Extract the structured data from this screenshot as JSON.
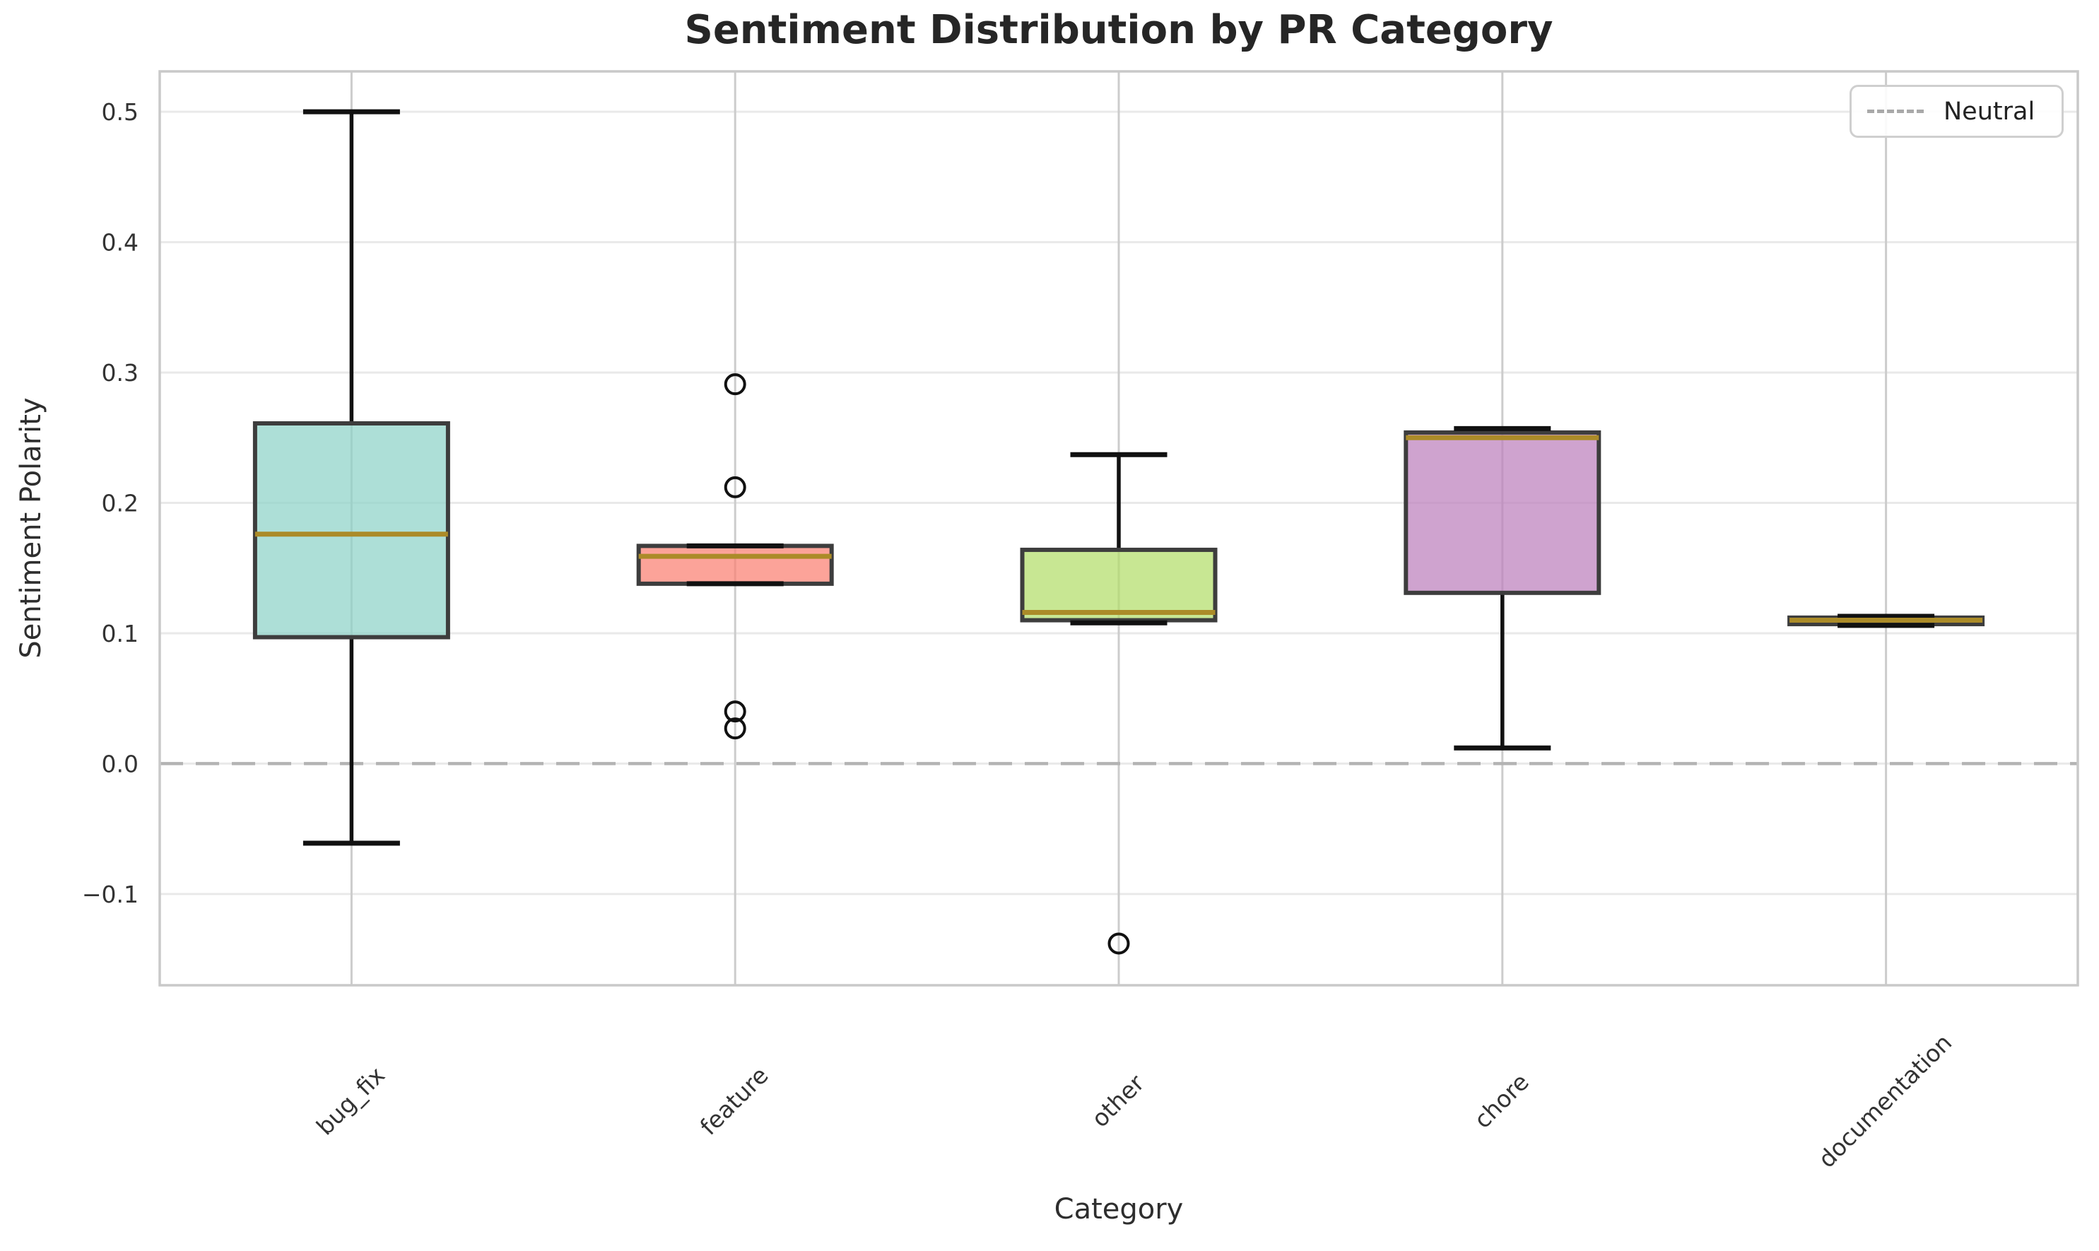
{
  "chart_data": {
    "type": "boxplot",
    "title": "Sentiment Distribution by PR Category",
    "xlabel": "Category",
    "ylabel": "Sentiment Polarity",
    "ylim": [
      -0.17,
      0.531
    ],
    "yticks": [
      0.5,
      0.4,
      0.3,
      0.2,
      0.1,
      0.0,
      -0.1
    ],
    "ytick_labels": [
      "0.5",
      "0.4",
      "0.3",
      "0.2",
      "0.1",
      "0.0",
      "−0.1"
    ],
    "grid": true,
    "legend": {
      "label": "Neutral",
      "position": "upper right",
      "line_style": "dashed"
    },
    "neutral_line": {
      "value": 0.0,
      "style": "dashed"
    },
    "categories": [
      "bug_fix",
      "feature",
      "other",
      "chore",
      "documentation"
    ],
    "boxes": [
      {
        "category": "bug_fix",
        "fill": "#8dd3c7",
        "whisker_low": -0.061,
        "q1": 0.097,
        "median": 0.176,
        "q3": 0.261,
        "whisker_high": 0.5,
        "outliers": []
      },
      {
        "category": "feature",
        "fill": "#fb8072",
        "whisker_low": 0.138,
        "q1": 0.138,
        "median": 0.159,
        "q3": 0.167,
        "whisker_high": 0.167,
        "outliers": [
          0.291,
          0.212,
          0.04,
          0.027
        ]
      },
      {
        "category": "other",
        "fill": "#b3de69",
        "whisker_low": 0.108,
        "q1": 0.11,
        "median": 0.116,
        "q3": 0.164,
        "whisker_high": 0.237,
        "outliers": [
          -0.138
        ]
      },
      {
        "category": "chore",
        "fill": "#bc80bd",
        "whisker_low": 0.012,
        "q1": 0.131,
        "median": 0.25,
        "q3": 0.254,
        "whisker_high": 0.257,
        "outliers": []
      },
      {
        "category": "documentation",
        "fill": "#ffed6f",
        "whisker_low": 0.106,
        "q1": 0.107,
        "median": 0.11,
        "q3": 0.112,
        "whisker_high": 0.113,
        "outliers": []
      }
    ],
    "colors": {
      "median_line": "#ab8b28",
      "box_edge": "#3d3d3d",
      "whisker": "#111111",
      "grid_horizontal": "#e9e9e9",
      "grid_vertical": "#cccccc",
      "spine": "#c9c9c9",
      "neutral_dash": "#b3b3b3",
      "tick_text": "#333333"
    }
  }
}
